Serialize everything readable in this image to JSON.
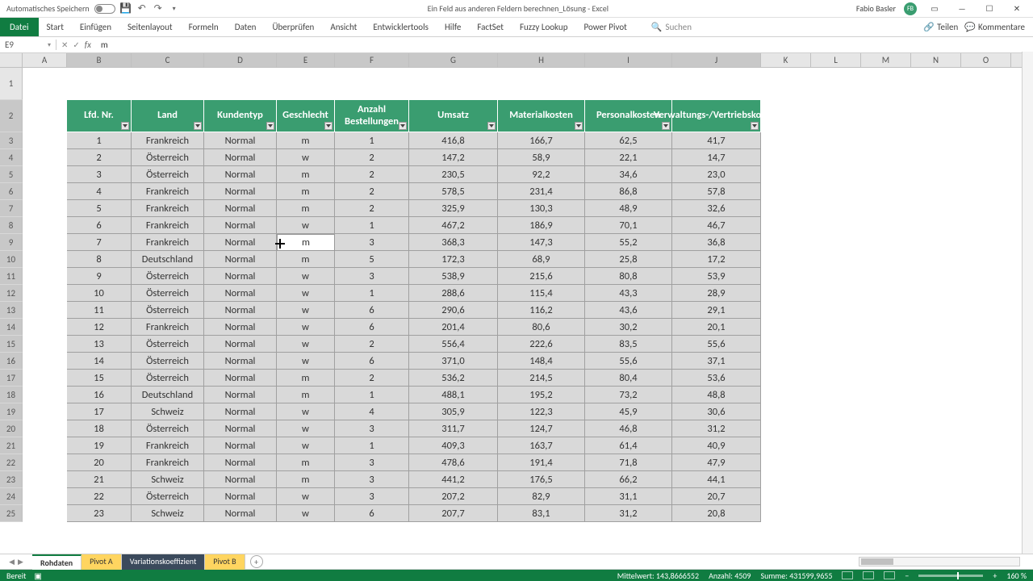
{
  "titlebar": {
    "autosave_label": "Automatisches Speichern",
    "document_title": "Ein Feld aus anderen Feldern berechnen_Lösung - Excel",
    "user_name": "Fabio Basler",
    "user_initials": "FB"
  },
  "ribbon": {
    "file": "Datei",
    "tabs": [
      "Start",
      "Einfügen",
      "Seitenlayout",
      "Formeln",
      "Daten",
      "Überprüfen",
      "Ansicht",
      "Entwicklertools",
      "Hilfe",
      "FactSet",
      "Fuzzy Lookup",
      "Power Pivot"
    ],
    "search_label": "Suchen",
    "share_label": "Teilen",
    "comments_label": "Kommentare"
  },
  "formula_bar": {
    "cell_ref": "E9",
    "fx": "fx",
    "value": "m"
  },
  "columns": {
    "letters": [
      "A",
      "B",
      "C",
      "D",
      "E",
      "F",
      "G",
      "H",
      "I",
      "J",
      "K",
      "L",
      "M",
      "N",
      "O"
    ],
    "widths": [
      55,
      80,
      90,
      90,
      72,
      92,
      110,
      108,
      108,
      110,
      62,
      62,
      62,
      62,
      62
    ],
    "data_start_index": 1,
    "data_end_index": 9
  },
  "rowheader_width": 28,
  "row1_height": 40,
  "theme": {
    "brand_green": "#107c41",
    "table_header_green": "#3a9d70",
    "selection_gray": "#d9d9d9"
  },
  "table": {
    "headers": [
      "Lfd. Nr.",
      "Land",
      "Kundentyp",
      "Geschlecht",
      "Anzahl Bestellungen",
      "Umsatz",
      "Materialkosten",
      "Personalkosten",
      "Verwaltungs-/Vertriebskosten"
    ],
    "rows": [
      [
        "1",
        "Frankreich",
        "Normal",
        "m",
        "1",
        "416,8",
        "166,7",
        "62,5",
        "41,7"
      ],
      [
        "2",
        "Österreich",
        "Normal",
        "w",
        "2",
        "147,2",
        "58,9",
        "22,1",
        "14,7"
      ],
      [
        "3",
        "Österreich",
        "Normal",
        "m",
        "2",
        "230,5",
        "92,2",
        "34,6",
        "23,0"
      ],
      [
        "4",
        "Frankreich",
        "Normal",
        "m",
        "2",
        "578,5",
        "231,4",
        "86,8",
        "57,8"
      ],
      [
        "5",
        "Frankreich",
        "Normal",
        "m",
        "2",
        "325,9",
        "130,3",
        "48,9",
        "32,6"
      ],
      [
        "6",
        "Frankreich",
        "Normal",
        "w",
        "1",
        "467,2",
        "186,9",
        "70,1",
        "46,7"
      ],
      [
        "7",
        "Frankreich",
        "Normal",
        "m",
        "3",
        "368,3",
        "147,3",
        "55,2",
        "36,8"
      ],
      [
        "8",
        "Deutschland",
        "Normal",
        "m",
        "5",
        "172,3",
        "68,9",
        "25,8",
        "17,2"
      ],
      [
        "9",
        "Österreich",
        "Normal",
        "w",
        "3",
        "538,9",
        "215,6",
        "80,8",
        "53,9"
      ],
      [
        "10",
        "Österreich",
        "Normal",
        "w",
        "1",
        "288,6",
        "115,4",
        "43,3",
        "28,9"
      ],
      [
        "11",
        "Österreich",
        "Normal",
        "w",
        "6",
        "290,6",
        "116,2",
        "43,6",
        "29,1"
      ],
      [
        "12",
        "Frankreich",
        "Normal",
        "w",
        "6",
        "201,4",
        "80,6",
        "30,2",
        "20,1"
      ],
      [
        "13",
        "Österreich",
        "Normal",
        "w",
        "2",
        "556,4",
        "222,6",
        "83,5",
        "55,6"
      ],
      [
        "14",
        "Österreich",
        "Normal",
        "w",
        "6",
        "371,0",
        "148,4",
        "55,6",
        "37,1"
      ],
      [
        "15",
        "Österreich",
        "Normal",
        "m",
        "2",
        "536,2",
        "214,5",
        "80,4",
        "53,6"
      ],
      [
        "16",
        "Deutschland",
        "Normal",
        "m",
        "1",
        "488,1",
        "195,2",
        "73,2",
        "48,8"
      ],
      [
        "17",
        "Schweiz",
        "Normal",
        "w",
        "4",
        "305,9",
        "122,3",
        "45,9",
        "30,6"
      ],
      [
        "18",
        "Österreich",
        "Normal",
        "w",
        "3",
        "311,7",
        "124,7",
        "46,8",
        "31,2"
      ],
      [
        "19",
        "Frankreich",
        "Normal",
        "w",
        "1",
        "409,3",
        "163,7",
        "61,4",
        "40,9"
      ],
      [
        "20",
        "Frankreich",
        "Normal",
        "m",
        "3",
        "478,6",
        "191,4",
        "71,8",
        "47,9"
      ],
      [
        "21",
        "Schweiz",
        "Normal",
        "m",
        "3",
        "441,2",
        "176,5",
        "66,2",
        "44,1"
      ],
      [
        "22",
        "Österreich",
        "Normal",
        "w",
        "3",
        "207,2",
        "82,9",
        "31,1",
        "20,7"
      ],
      [
        "23",
        "Schweiz",
        "Normal",
        "w",
        "6",
        "207,7",
        "83,1",
        "31,2",
        "20,8"
      ]
    ]
  },
  "active_cell": {
    "row_idx": 6,
    "col_idx": 3
  },
  "sheets": {
    "items": [
      {
        "name": "Rohdaten",
        "style": "active"
      },
      {
        "name": "Pivot A",
        "style": "warn"
      },
      {
        "name": "Variationskoeffizient",
        "style": "dark"
      },
      {
        "name": "Pivot B",
        "style": "warn"
      }
    ]
  },
  "statusbar": {
    "ready": "Bereit",
    "avg_label": "Mittelwert:",
    "avg_value": "143,8666552",
    "count_label": "Anzahl:",
    "count_value": "4509",
    "sum_label": "Summe:",
    "sum_value": "431599,9655",
    "zoom": "160 %"
  }
}
